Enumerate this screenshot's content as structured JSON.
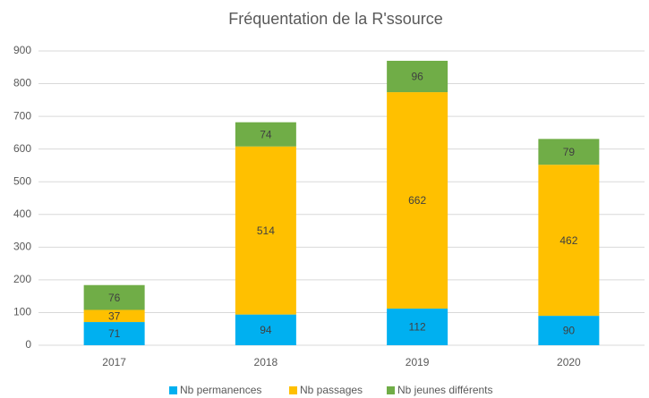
{
  "chart_data": {
    "type": "stacked_bar",
    "title": "Fréquentation de la R'ssource",
    "categories": [
      "2017",
      "2018",
      "2019",
      "2020"
    ],
    "series": [
      {
        "name": "Nb permanences",
        "color": "#00b0f0",
        "values": [
          71,
          94,
          112,
          90
        ]
      },
      {
        "name": "Nb passages",
        "color": "#ffc000",
        "values": [
          37,
          514,
          662,
          462
        ]
      },
      {
        "name": "Nb jeunes différents",
        "color": "#70ad47",
        "values": [
          76,
          74,
          96,
          79
        ]
      }
    ],
    "ylim": [
      0,
      900
    ],
    "yticks": [
      0,
      100,
      200,
      300,
      400,
      500,
      600,
      700,
      800,
      900
    ],
    "grid": true,
    "legend": "bottom"
  }
}
